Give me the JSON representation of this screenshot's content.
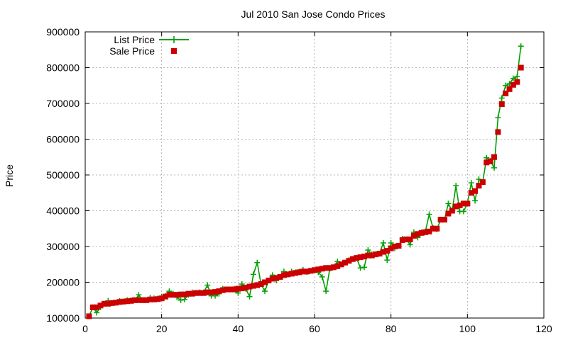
{
  "chart_data": {
    "type": "line",
    "title": "Jul 2010 San Jose Condo Prices",
    "xlabel": "",
    "ylabel": "Price",
    "xlim": [
      0,
      120
    ],
    "ylim": [
      100000,
      900000
    ],
    "xticks": [
      0,
      20,
      40,
      60,
      80,
      100,
      120
    ],
    "yticks": [
      100000,
      200000,
      300000,
      400000,
      500000,
      600000,
      700000,
      800000,
      900000
    ],
    "grid": true,
    "legend_position": "top-left",
    "series": [
      {
        "name": "List Price",
        "style": "line+plus",
        "color": "#00a000",
        "x": [
          1,
          2,
          3,
          4,
          5,
          6,
          7,
          8,
          9,
          10,
          11,
          12,
          13,
          14,
          15,
          16,
          17,
          18,
          19,
          20,
          21,
          22,
          23,
          24,
          25,
          26,
          27,
          28,
          29,
          30,
          31,
          32,
          33,
          34,
          35,
          36,
          37,
          38,
          39,
          40,
          41,
          42,
          43,
          44,
          45,
          46,
          47,
          48,
          49,
          50,
          51,
          52,
          53,
          54,
          55,
          56,
          57,
          58,
          59,
          60,
          61,
          62,
          63,
          64,
          65,
          66,
          67,
          68,
          69,
          70,
          71,
          72,
          73,
          74,
          75,
          76,
          77,
          78,
          79,
          80,
          81,
          82,
          83,
          84,
          85,
          86,
          87,
          88,
          89,
          90,
          91,
          92,
          93,
          94,
          95,
          96,
          97,
          98,
          99,
          100,
          101,
          102,
          103,
          104,
          105,
          106,
          107,
          108,
          109,
          110,
          111,
          112,
          113,
          114
        ],
        "values": [
          105000,
          130000,
          115000,
          130000,
          140000,
          148000,
          142000,
          143000,
          148000,
          146000,
          150000,
          150000,
          150000,
          165000,
          150000,
          150000,
          157000,
          155000,
          155000,
          160000,
          162000,
          175000,
          168000,
          158000,
          150000,
          152000,
          165000,
          172000,
          170000,
          172000,
          172000,
          192000,
          162000,
          162000,
          168000,
          182000,
          180000,
          180000,
          182000,
          170000,
          195000,
          182000,
          160000,
          222000,
          255000,
          195000,
          175000,
          205000,
          220000,
          205000,
          215000,
          230000,
          222000,
          230000,
          228000,
          230000,
          235000,
          228000,
          232000,
          234000,
          228000,
          215000,
          175000,
          238000,
          242000,
          258000,
          250000,
          255000,
          262000,
          265000,
          268000,
          240000,
          242000,
          290000,
          278000,
          278000,
          280000,
          310000,
          262000,
          310000,
          295000,
          302000,
          322000,
          320000,
          305000,
          340000,
          325000,
          340000,
          342000,
          390000,
          352000,
          348000,
          375000,
          375000,
          420000,
          400000,
          470000,
          398000,
          398000,
          420000,
          478000,
          428000,
          488000,
          480000,
          548000,
          540000,
          520000,
          660000,
          715000,
          750000,
          755000,
          770000,
          775000,
          860000
        ]
      },
      {
        "name": "Sale Price",
        "style": "square-markers",
        "color": "#cc0000",
        "x": [
          1,
          2,
          3,
          4,
          5,
          6,
          7,
          8,
          9,
          10,
          11,
          12,
          13,
          14,
          15,
          16,
          17,
          18,
          19,
          20,
          21,
          22,
          23,
          24,
          25,
          26,
          27,
          28,
          29,
          30,
          31,
          32,
          33,
          34,
          35,
          36,
          37,
          38,
          39,
          40,
          41,
          42,
          43,
          44,
          45,
          46,
          47,
          48,
          49,
          50,
          51,
          52,
          53,
          54,
          55,
          56,
          57,
          58,
          59,
          60,
          61,
          62,
          63,
          64,
          65,
          66,
          67,
          68,
          69,
          70,
          71,
          72,
          73,
          74,
          75,
          76,
          77,
          78,
          79,
          80,
          81,
          82,
          83,
          84,
          85,
          86,
          87,
          88,
          89,
          90,
          91,
          92,
          93,
          94,
          95,
          96,
          97,
          98,
          99,
          100,
          101,
          102,
          103,
          104,
          105,
          106,
          107,
          108,
          109,
          110,
          111,
          112,
          113,
          114
        ],
        "values": [
          105000,
          130000,
          130000,
          135000,
          140000,
          140000,
          142000,
          143000,
          145000,
          146000,
          147000,
          148000,
          150000,
          150000,
          150000,
          150000,
          152000,
          152000,
          153000,
          155000,
          160000,
          165000,
          165000,
          165000,
          166000,
          166000,
          168000,
          168000,
          170000,
          170000,
          170000,
          172000,
          172000,
          173000,
          175000,
          178000,
          180000,
          180000,
          180000,
          182000,
          183000,
          185000,
          188000,
          190000,
          192000,
          195000,
          200000,
          205000,
          210000,
          212000,
          215000,
          220000,
          222000,
          224000,
          226000,
          228000,
          230000,
          230000,
          232000,
          234000,
          236000,
          238000,
          240000,
          240000,
          242000,
          245000,
          250000,
          255000,
          260000,
          265000,
          268000,
          270000,
          272000,
          275000,
          275000,
          278000,
          280000,
          285000,
          288000,
          295000,
          300000,
          302000,
          318000,
          320000,
          320000,
          330000,
          335000,
          338000,
          340000,
          342000,
          350000,
          350000,
          375000,
          375000,
          392000,
          400000,
          412000,
          415000,
          420000,
          420000,
          450000,
          455000,
          470000,
          480000,
          535000,
          538000,
          550000,
          620000,
          698000,
          728000,
          740000,
          752000,
          760000,
          800000
        ]
      }
    ]
  }
}
